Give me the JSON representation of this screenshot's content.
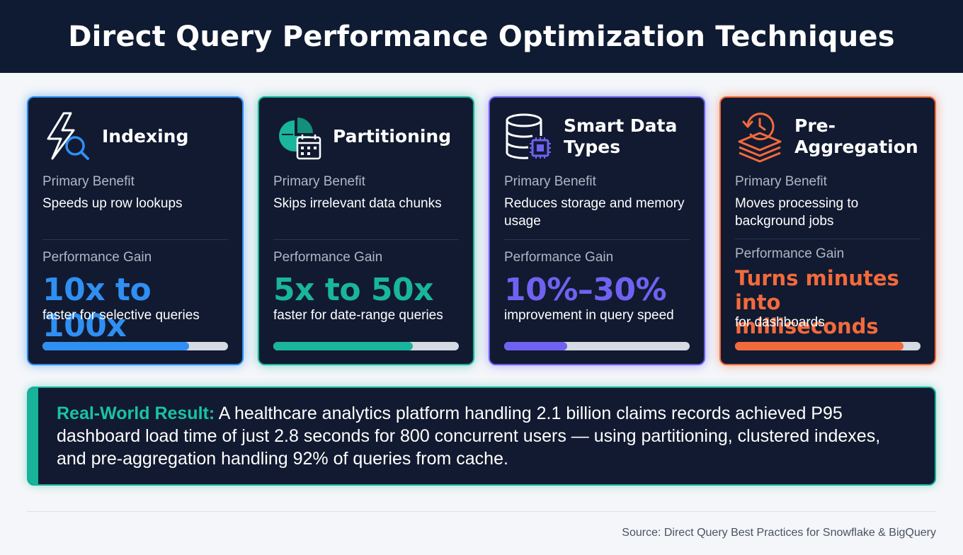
{
  "header": {
    "title": "Direct Query Performance Optimization Techniques"
  },
  "cards": [
    {
      "icon": "lightning-search-icon",
      "title": "Indexing",
      "benefit_label": "Primary Benefit",
      "benefit": "Speeds up row lookups",
      "gain_label": "Performance Gain",
      "gain": "10x to 100x",
      "gain_sub": "faster for selective queries",
      "progress": 0.79,
      "accent": "#2f8ff2"
    },
    {
      "icon": "pie-calendar-icon",
      "title": "Partitioning",
      "benefit_label": "Primary Benefit",
      "benefit": "Skips irrelevant data chunks",
      "gain_label": "Performance Gain",
      "gain": "5x to 50x",
      "gain_sub": "faster for date-range queries",
      "progress": 0.75,
      "accent": "#19b59c"
    },
    {
      "icon": "database-chip-icon",
      "title": "Smart Data Types",
      "benefit_label": "Primary Benefit",
      "benefit": "Reduces storage and memory usage",
      "gain_label": "Performance Gain",
      "gain": "10%–30%",
      "gain_sub": "improvement in query speed",
      "progress": 0.34,
      "accent": "#6f62f2"
    },
    {
      "icon": "clock-layers-icon",
      "title": "Pre-Aggregation",
      "benefit_label": "Primary Benefit",
      "benefit": "Moves processing to background jobs",
      "gain_label": "Performance Gain",
      "gain": "Turns minutes into milliseconds",
      "gain_sub": "for dashboards",
      "progress": 0.91,
      "accent": "#f26a3c"
    }
  ],
  "result": {
    "label": "Real-World Result:",
    "text": " A healthcare analytics platform handling 2.1 billion claims records achieved P95 dashboard load time of just 2.8 seconds for 800 concurrent users — using partitioning, clustered indexes, and pre-aggregation handling 92% of queries from cache."
  },
  "footer": {
    "source": "Source: Direct Query Best Practices for Snowflake & BigQuery"
  }
}
